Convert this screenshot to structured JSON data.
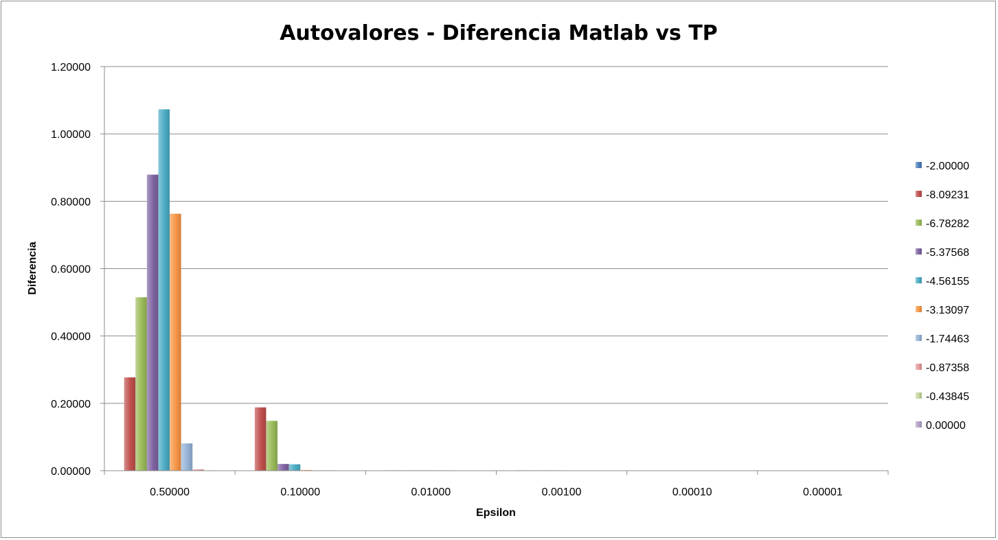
{
  "chart_data": {
    "type": "bar",
    "title": "Autovalores - Diferencia Matlab vs TP",
    "xlabel": "Epsilon",
    "ylabel": "Diferencia",
    "ylim": [
      0,
      1.2
    ],
    "yticks": [
      "0.00000",
      "0.20000",
      "0.40000",
      "0.60000",
      "0.80000",
      "1.00000",
      "1.20000"
    ],
    "grid": true,
    "legend_position": "right",
    "categories": [
      "0.50000",
      "0.10000",
      "0.01000",
      "0.00100",
      "0.00010",
      "0.00001"
    ],
    "series": [
      {
        "name": "-2.00000",
        "color": "#4a7ebb",
        "values": [
          0,
          0,
          0,
          0,
          0,
          0
        ]
      },
      {
        "name": "-8.09231",
        "color": "#c0504d",
        "values": [
          0.277,
          0.188,
          0.0004,
          0.0001,
          0,
          0
        ]
      },
      {
        "name": "-6.78282",
        "color": "#9bbb59",
        "values": [
          0.515,
          0.148,
          0.0004,
          0.0001,
          0,
          0
        ]
      },
      {
        "name": "-5.37568",
        "color": "#8064a2",
        "values": [
          0.879,
          0.02,
          0.0003,
          0.0001,
          0,
          0
        ]
      },
      {
        "name": "-4.56155",
        "color": "#4bacc6",
        "values": [
          1.073,
          0.019,
          0.0003,
          0.0001,
          0,
          0
        ]
      },
      {
        "name": "-3.13097",
        "color": "#f79646",
        "values": [
          0.763,
          0.002,
          0.0002,
          0,
          0,
          0
        ]
      },
      {
        "name": "-1.74463",
        "color": "#95b3d7",
        "values": [
          0.081,
          0.001,
          0.0001,
          0,
          0,
          0
        ]
      },
      {
        "name": "-0.87358",
        "color": "#e6999b",
        "values": [
          0.004,
          0.001,
          0,
          0,
          0,
          0
        ]
      },
      {
        "name": "-0.43845",
        "color": "#c3d69b",
        "values": [
          0.001,
          0,
          0,
          0,
          0,
          0
        ]
      },
      {
        "name": "0.00000",
        "color": "#b3a2c7",
        "values": [
          0,
          0,
          0,
          0,
          0,
          0
        ]
      }
    ]
  }
}
